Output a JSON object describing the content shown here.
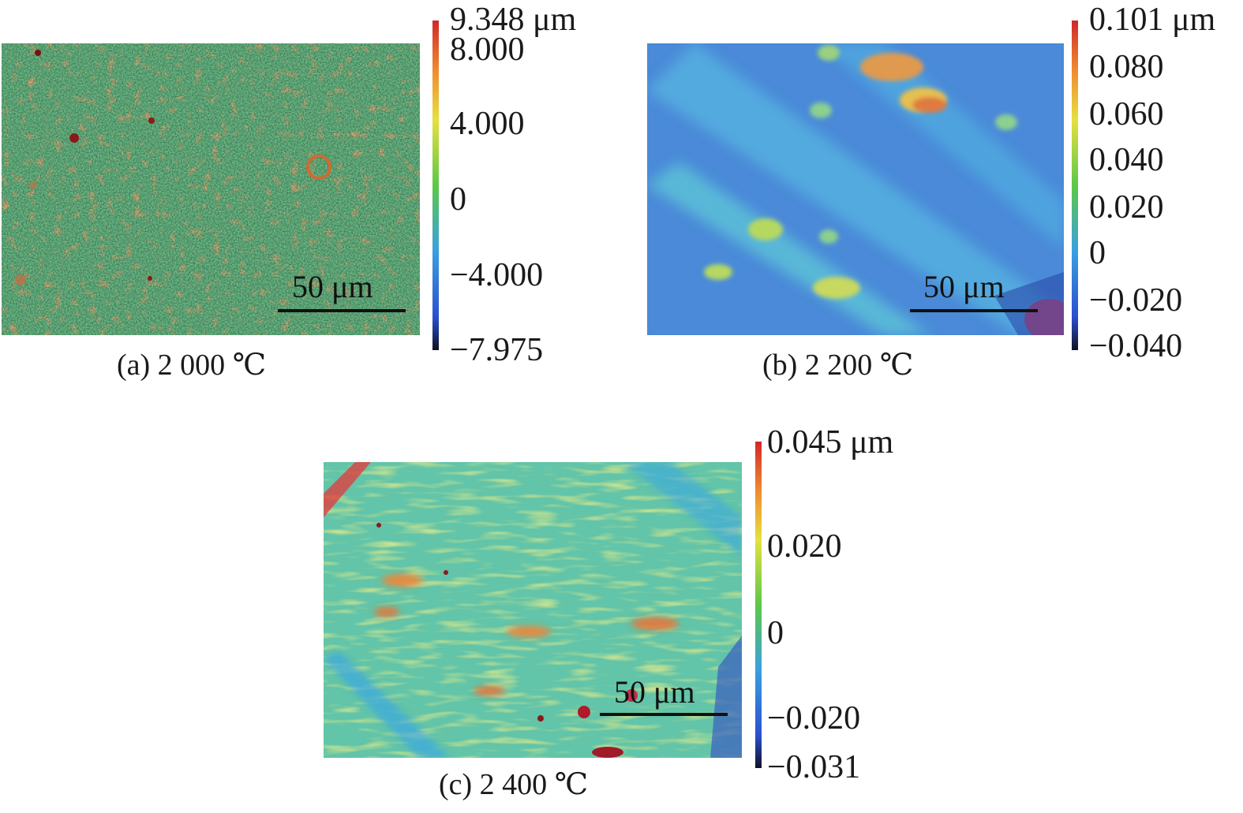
{
  "panels": [
    {
      "id": "a",
      "caption": "(a) 2 000 ℃",
      "scale_bar": "50 μm",
      "colorbar_ticks": [
        "9.348 μm",
        "8.000",
        "4.000",
        "0",
        "−4.000",
        "−7.975"
      ],
      "colorbar_values": [
        9.348,
        8.0,
        4.0,
        0,
        -4.0,
        -7.975
      ]
    },
    {
      "id": "b",
      "caption": "(b) 2 200 ℃",
      "scale_bar": "50 μm",
      "colorbar_ticks": [
        "0.101 μm",
        "0.080",
        "0.060",
        "0.040",
        "0.020",
        "0",
        "−0.020",
        "−0.040"
      ],
      "colorbar_values": [
        0.101,
        0.08,
        0.06,
        0.04,
        0.02,
        0,
        -0.02,
        -0.04
      ]
    },
    {
      "id": "c",
      "caption": "(c) 2 400 ℃",
      "scale_bar": "50 μm",
      "colorbar_ticks": [
        "0.045 μm",
        "0.020",
        "0",
        "−0.020",
        "−0.031"
      ],
      "colorbar_values": [
        0.045,
        0.02,
        0,
        -0.02,
        -0.031
      ]
    }
  ],
  "colormap": [
    "#1a1a5e",
    "#2a4fd0",
    "#3aa0e0",
    "#40c8b0",
    "#5cc848",
    "#e6e040",
    "#f08a30",
    "#d02828"
  ]
}
